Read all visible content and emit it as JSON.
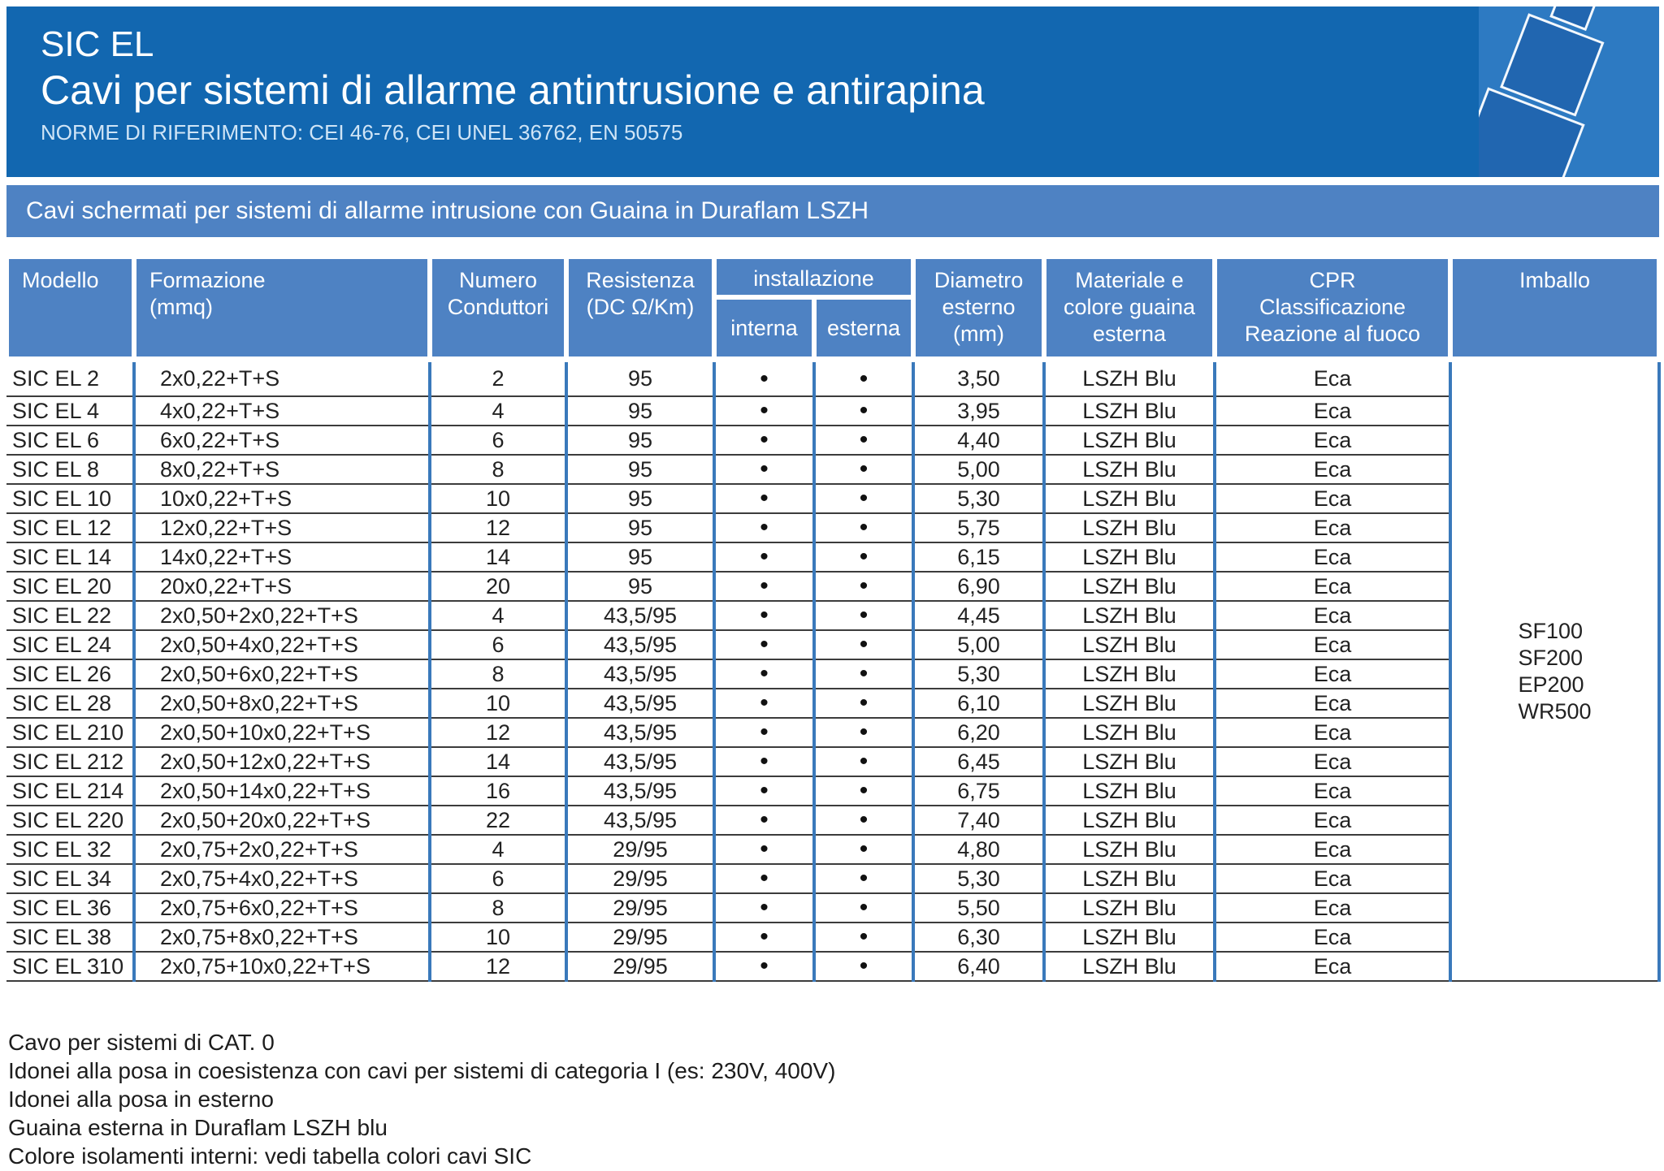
{
  "header": {
    "brand": "SIC EL",
    "title": "Cavi per sistemi di allarme antintrusione e antirapina",
    "norms": "NORME DI RIFERIMENTO: CEI 46-76, CEI UNEL 36762, EN 50575"
  },
  "banner": {
    "text": "Cavi schermati per sistemi di allarme intrusione con Guaina in Duraflam LSZH"
  },
  "table": {
    "columns": {
      "modello": "Modello",
      "formazione": [
        "Formazione",
        "(mmq)"
      ],
      "numero": [
        "Numero",
        "Conduttori"
      ],
      "resistenza": [
        "Resistenza",
        "(DC Ω/Km)"
      ],
      "installazione": "installazione",
      "interna": "interna",
      "esterna": "esterna",
      "diametro": [
        "Diametro",
        "esterno",
        "(mm)"
      ],
      "materiale": [
        "Materiale e",
        "colore guaina",
        "esterna"
      ],
      "cpr": [
        "CPR",
        "Classificazione",
        "Reazione al fuoco"
      ],
      "imballo": "Imballo"
    },
    "rows": [
      {
        "model": "SIC EL 2",
        "formation": "2x0,22+T+S",
        "conductors": "2",
        "resistance": "95",
        "interna": "•",
        "esterna": "•",
        "diameter": "3,50",
        "sheath": "LSZH Blu",
        "cpr": "Eca"
      },
      {
        "model": "SIC EL 4",
        "formation": "4x0,22+T+S",
        "conductors": "4",
        "resistance": "95",
        "interna": "•",
        "esterna": "•",
        "diameter": "3,95",
        "sheath": "LSZH Blu",
        "cpr": "Eca"
      },
      {
        "model": "SIC EL 6",
        "formation": "6x0,22+T+S",
        "conductors": "6",
        "resistance": "95",
        "interna": "•",
        "esterna": "•",
        "diameter": "4,40",
        "sheath": "LSZH Blu",
        "cpr": "Eca"
      },
      {
        "model": "SIC EL 8",
        "formation": "8x0,22+T+S",
        "conductors": "8",
        "resistance": "95",
        "interna": "•",
        "esterna": "•",
        "diameter": "5,00",
        "sheath": "LSZH Blu",
        "cpr": "Eca"
      },
      {
        "model": "SIC EL 10",
        "formation": "10x0,22+T+S",
        "conductors": "10",
        "resistance": "95",
        "interna": "•",
        "esterna": "•",
        "diameter": "5,30",
        "sheath": "LSZH Blu",
        "cpr": "Eca"
      },
      {
        "model": "SIC EL 12",
        "formation": "12x0,22+T+S",
        "conductors": "12",
        "resistance": "95",
        "interna": "•",
        "esterna": "•",
        "diameter": "5,75",
        "sheath": "LSZH Blu",
        "cpr": "Eca"
      },
      {
        "model": "SIC EL 14",
        "formation": "14x0,22+T+S",
        "conductors": "14",
        "resistance": "95",
        "interna": "•",
        "esterna": "•",
        "diameter": "6,15",
        "sheath": "LSZH Blu",
        "cpr": "Eca"
      },
      {
        "model": "SIC EL 20",
        "formation": "20x0,22+T+S",
        "conductors": "20",
        "resistance": "95",
        "interna": "•",
        "esterna": "•",
        "diameter": "6,90",
        "sheath": "LSZH Blu",
        "cpr": "Eca"
      },
      {
        "model": "SIC EL 22",
        "formation": "2x0,50+2x0,22+T+S",
        "conductors": "4",
        "resistance": "43,5/95",
        "interna": "•",
        "esterna": "•",
        "diameter": "4,45",
        "sheath": "LSZH Blu",
        "cpr": "Eca"
      },
      {
        "model": "SIC EL 24",
        "formation": "2x0,50+4x0,22+T+S",
        "conductors": "6",
        "resistance": "43,5/95",
        "interna": "•",
        "esterna": "•",
        "diameter": "5,00",
        "sheath": "LSZH Blu",
        "cpr": "Eca"
      },
      {
        "model": "SIC EL 26",
        "formation": "2x0,50+6x0,22+T+S",
        "conductors": "8",
        "resistance": "43,5/95",
        "interna": "•",
        "esterna": "•",
        "diameter": "5,30",
        "sheath": "LSZH Blu",
        "cpr": "Eca"
      },
      {
        "model": "SIC EL 28",
        "formation": "2x0,50+8x0,22+T+S",
        "conductors": "10",
        "resistance": "43,5/95",
        "interna": "•",
        "esterna": "•",
        "diameter": "6,10",
        "sheath": "LSZH Blu",
        "cpr": "Eca"
      },
      {
        "model": "SIC EL 210",
        "formation": "2x0,50+10x0,22+T+S",
        "conductors": "12",
        "resistance": "43,5/95",
        "interna": "•",
        "esterna": "•",
        "diameter": "6,20",
        "sheath": "LSZH Blu",
        "cpr": "Eca"
      },
      {
        "model": "SIC EL 212",
        "formation": "2x0,50+12x0,22+T+S",
        "conductors": "14",
        "resistance": "43,5/95",
        "interna": "•",
        "esterna": "•",
        "diameter": "6,45",
        "sheath": "LSZH Blu",
        "cpr": "Eca"
      },
      {
        "model": "SIC EL 214",
        "formation": "2x0,50+14x0,22+T+S",
        "conductors": "16",
        "resistance": "43,5/95",
        "interna": "•",
        "esterna": "•",
        "diameter": "6,75",
        "sheath": "LSZH Blu",
        "cpr": "Eca"
      },
      {
        "model": "SIC EL 220",
        "formation": "2x0,50+20x0,22+T+S",
        "conductors": "22",
        "resistance": "43,5/95",
        "interna": "•",
        "esterna": "•",
        "diameter": "7,40",
        "sheath": "LSZH Blu",
        "cpr": "Eca"
      },
      {
        "model": "SIC EL 32",
        "formation": "2x0,75+2x0,22+T+S",
        "conductors": "4",
        "resistance": "29/95",
        "interna": "•",
        "esterna": "•",
        "diameter": "4,80",
        "sheath": "LSZH Blu",
        "cpr": "Eca"
      },
      {
        "model": "SIC EL 34",
        "formation": "2x0,75+4x0,22+T+S",
        "conductors": "6",
        "resistance": "29/95",
        "interna": "•",
        "esterna": "•",
        "diameter": "5,30",
        "sheath": "LSZH Blu",
        "cpr": "Eca"
      },
      {
        "model": "SIC EL 36",
        "formation": "2x0,75+6x0,22+T+S",
        "conductors": "8",
        "resistance": "29/95",
        "interna": "•",
        "esterna": "•",
        "diameter": "5,50",
        "sheath": "LSZH Blu",
        "cpr": "Eca"
      },
      {
        "model": "SIC EL 38",
        "formation": "2x0,75+8x0,22+T+S",
        "conductors": "10",
        "resistance": "29/95",
        "interna": "•",
        "esterna": "•",
        "diameter": "6,30",
        "sheath": "LSZH Blu",
        "cpr": "Eca"
      },
      {
        "model": "SIC EL 310",
        "formation": "2x0,75+10x0,22+T+S",
        "conductors": "12",
        "resistance": "29/95",
        "interna": "•",
        "esterna": "•",
        "diameter": "6,40",
        "sheath": "LSZH Blu",
        "cpr": "Eca"
      }
    ],
    "imballo": [
      "SF100",
      "SF200",
      "EP200",
      "WR500"
    ]
  },
  "notes": [
    "Cavo per sistemi di CAT. 0",
    "Idonei alla posa in coesistenza con cavi per sistemi di categoria I (es: 230V, 400V)",
    "Idonei alla posa in esterno",
    "Guaina esterna in Duraflam LSZH blu",
    "Colore isolamenti interni: vedi tabella colori cavi SIC"
  ],
  "colors": {
    "band-blue": "#1267b0",
    "panel-blue": "#2d7ac2",
    "seg-blue": "#2166b0",
    "cell-blue": "#4e82c3",
    "border-blue": "#3a79bb",
    "line-dark": "#3c3c3c",
    "text-dark": "#222222",
    "norms-light": "#cfe4f6"
  }
}
